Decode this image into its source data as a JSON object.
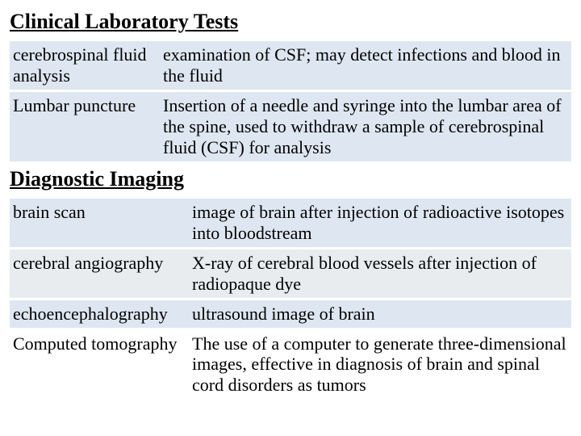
{
  "colors": {
    "rowBlue": "#dee7f1",
    "rowGray": "#e9ecef",
    "white": "#ffffff",
    "black": "#000000"
  },
  "section1": {
    "heading": "Clinical Laboratory Tests",
    "row1": {
      "term": "cerebrospinal fluid analysis",
      "desc": "examination of CSF; may detect infections and blood in the fluid",
      "bg": "#dee7f1",
      "termWidth": "186px"
    },
    "row2": {
      "term": "Lumbar puncture",
      "desc": "Insertion of a needle and syringe into the lumbar area of the spine, used to withdraw a sample of cerebrospinal fluid (CSF) for analysis",
      "bg": "#dee7f1",
      "termWidth": "186px"
    }
  },
  "section2": {
    "heading": "Diagnostic Imaging",
    "row1": {
      "term": "brain scan",
      "desc": "image of brain after injection of radioactive isotopes into bloodstream",
      "bg": "#dee7f1",
      "termWidth": "222px"
    },
    "row2": {
      "term": "cerebral angiography",
      "desc": "X-ray of cerebral blood vessels after injection of radiopaque dye",
      "bg": "#e9ecef",
      "termWidth": "222px"
    },
    "row3": {
      "term": "echoencephalography",
      "desc": "ultrasound image of brain",
      "bg": "#dee7f1",
      "termWidth": "222px"
    },
    "row4": {
      "term": "Computed tomography",
      "desc": "The use of a computer to generate three-dimensional images, effective in diagnosis of brain and spinal cord disorders as tumors",
      "bg": "#ffffff",
      "termWidth": "186px"
    }
  }
}
